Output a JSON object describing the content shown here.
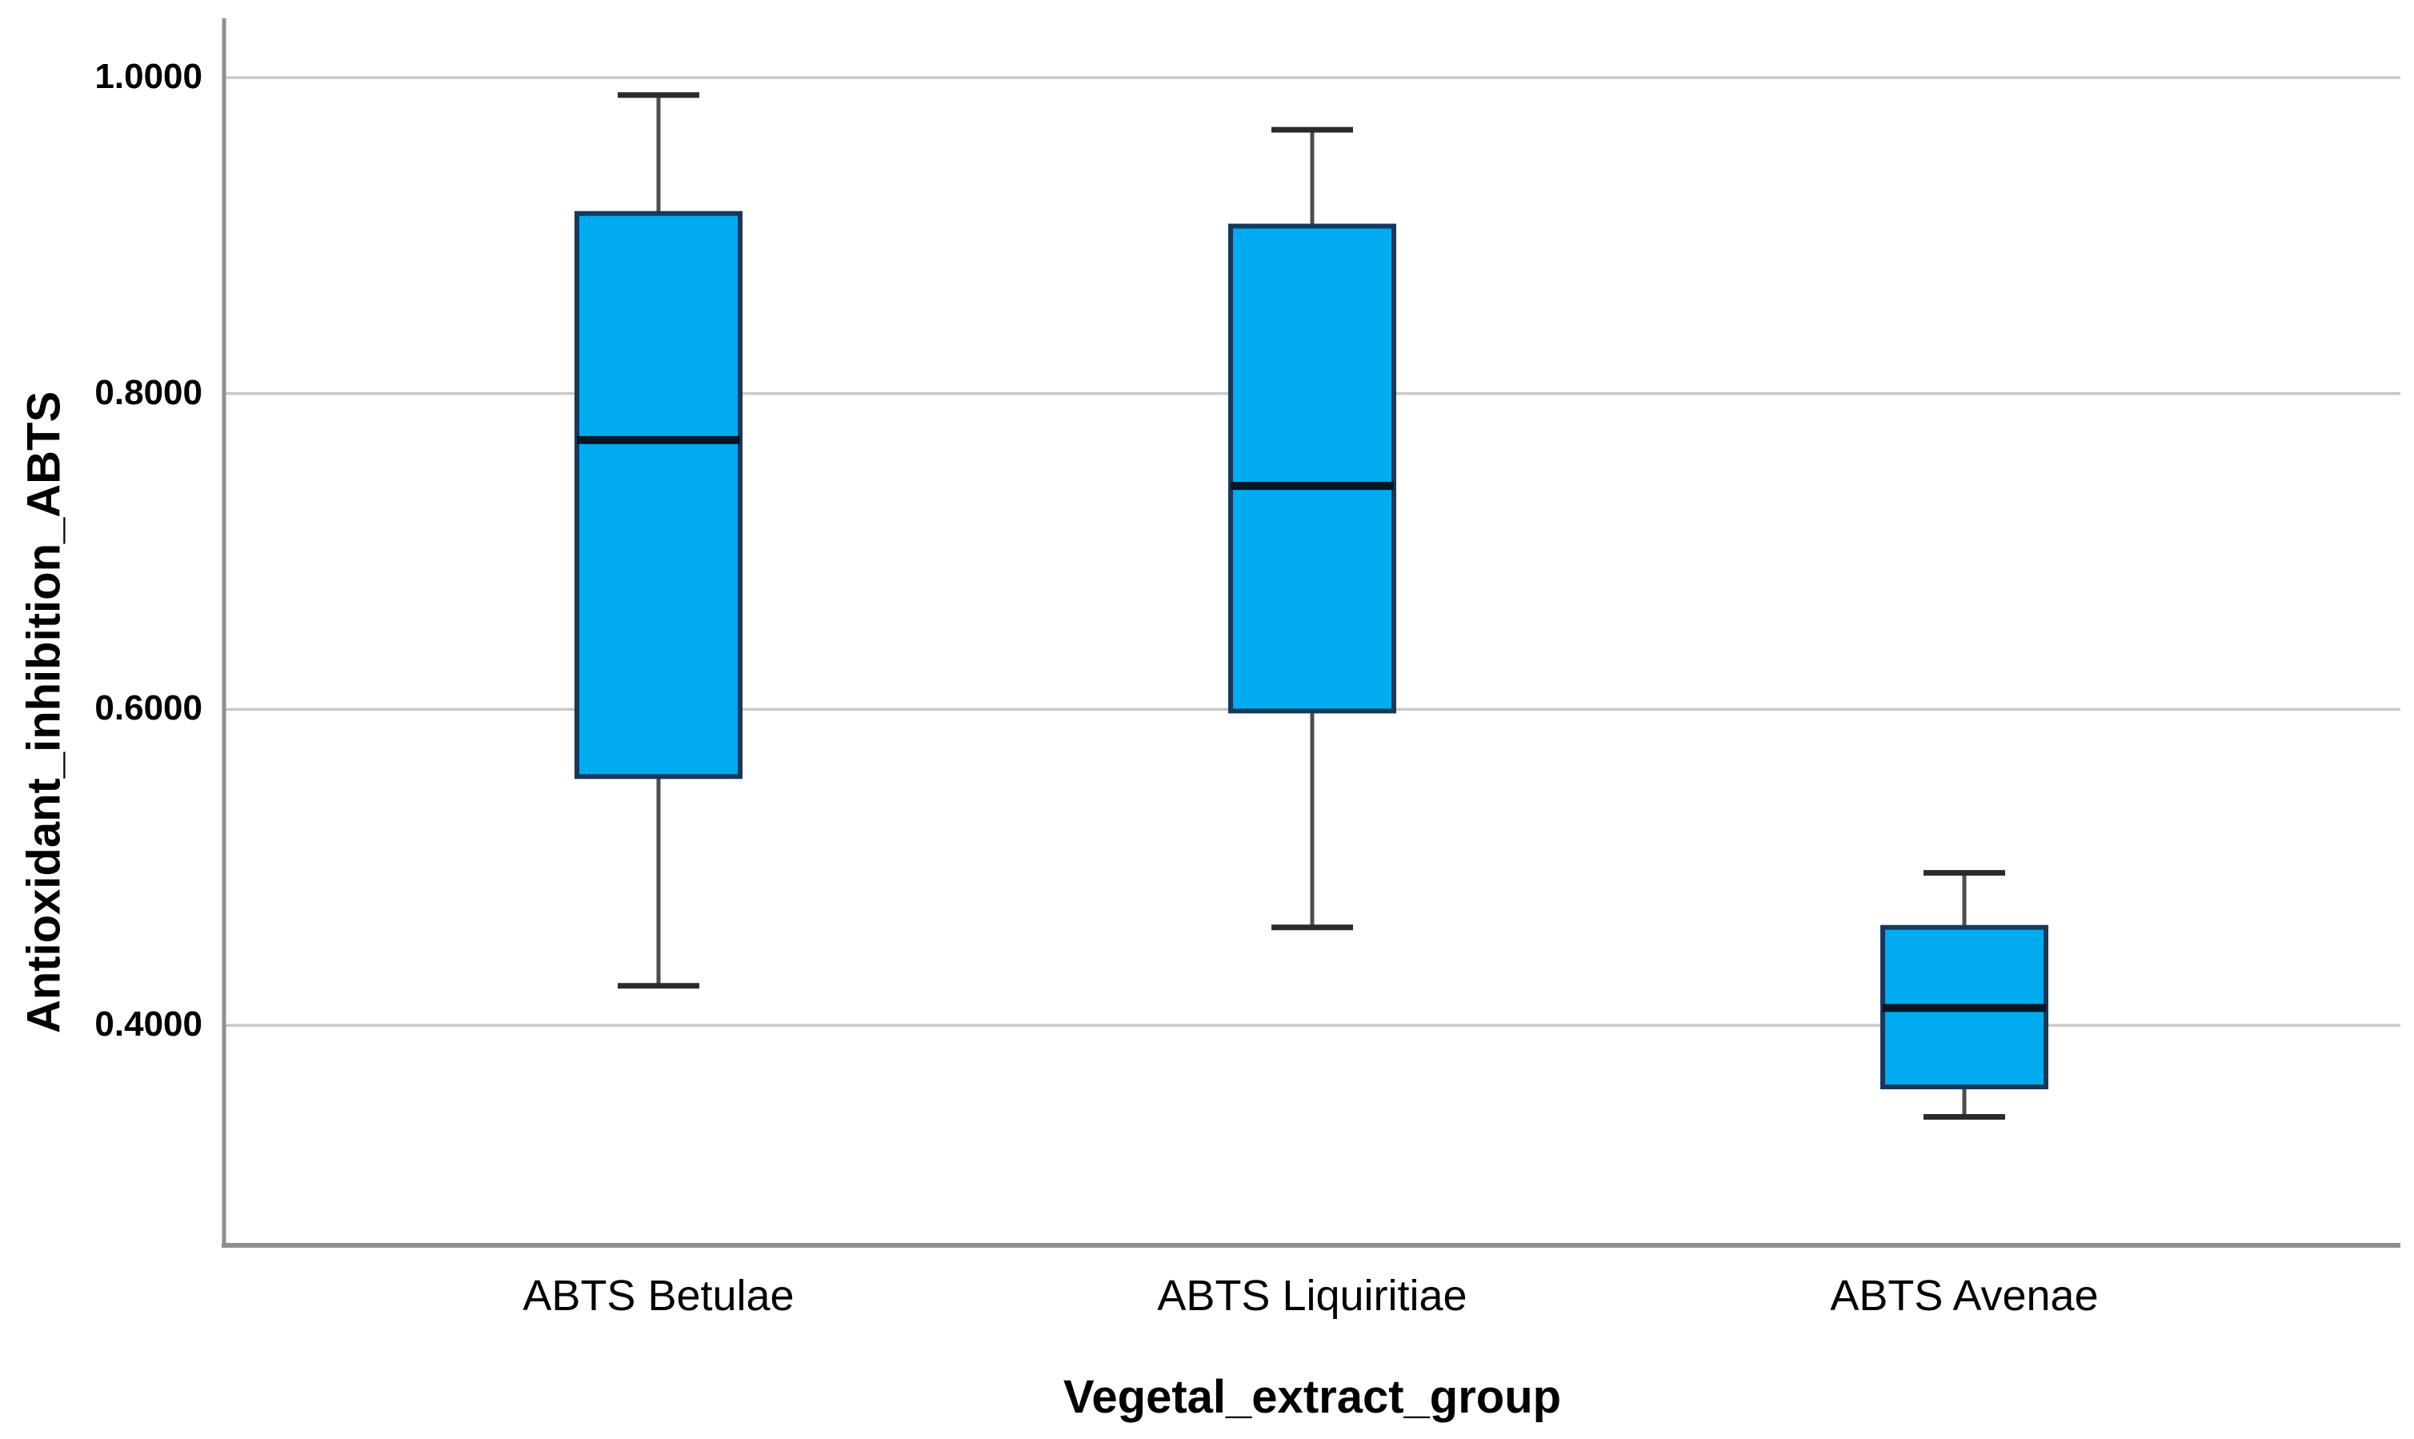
{
  "chart_data": {
    "type": "boxplot",
    "title": "",
    "xlabel": "Vegetal_extract_group",
    "ylabel": "Antioxidant_inhibition_ABTS",
    "categories": [
      "ABTS Betulae",
      "ABTS Liquiritiae",
      "ABTS Avenae"
    ],
    "series": [
      {
        "name": "ABTS Betulae",
        "min": 0.425,
        "q1": 0.5575,
        "median": 0.7705,
        "q3": 0.914,
        "max": 0.989
      },
      {
        "name": "ABTS Liquiritiae",
        "min": 0.462,
        "q1": 0.599,
        "median": 0.7415,
        "q3": 0.906,
        "max": 0.967
      },
      {
        "name": "ABTS Avenae",
        "min": 0.342,
        "q1": 0.361,
        "median": 0.411,
        "q3": 0.462,
        "max": 0.4965
      }
    ],
    "y_axis": {
      "ticks": [
        1.0,
        0.8,
        0.6,
        0.4
      ],
      "tick_labels": [
        "1.0000",
        "0.8000",
        "0.6000",
        "0.4000"
      ],
      "range_top": 1.0375,
      "range_bottom": 0.2607,
      "grid": true
    },
    "x_axis": {
      "grid": false
    },
    "legend": false,
    "colors": {
      "box_fill": "#00abf0",
      "box_border": "#16395b",
      "median": "#0a1523",
      "whisker": "#4d4d4d",
      "whisker_cap": "#2b2b2b",
      "gridline": "#c9c9c9",
      "axis_line": "#8f8f8f",
      "text": "#000000",
      "background": "#ffffff"
    }
  }
}
